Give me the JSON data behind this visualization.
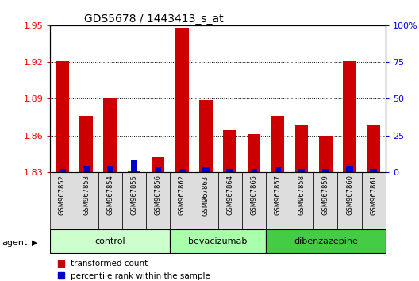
{
  "title": "GDS5678 / 1443413_s_at",
  "samples": [
    "GSM967852",
    "GSM967853",
    "GSM967854",
    "GSM967855",
    "GSM967856",
    "GSM967862",
    "GSM967863",
    "GSM967864",
    "GSM967865",
    "GSM967857",
    "GSM967858",
    "GSM967859",
    "GSM967860",
    "GSM967861"
  ],
  "red_values": [
    1.921,
    1.876,
    1.89,
    1.831,
    1.842,
    1.948,
    1.889,
    1.864,
    1.861,
    1.876,
    1.868,
    1.86,
    1.921,
    1.869
  ],
  "blue_values": [
    2,
    4,
    4,
    8,
    3,
    2,
    3,
    2,
    2,
    3,
    2,
    2,
    4,
    2
  ],
  "y_min": 1.83,
  "y_max": 1.95,
  "y_ticks": [
    1.83,
    1.86,
    1.89,
    1.92,
    1.95
  ],
  "right_ticks": [
    0,
    25,
    50,
    75,
    100
  ],
  "right_tick_labels": [
    "0",
    "25",
    "50",
    "75",
    "100%"
  ],
  "groups": [
    {
      "label": "control",
      "start": 0,
      "end": 5,
      "color": "#ccffcc"
    },
    {
      "label": "bevacizumab",
      "start": 5,
      "end": 9,
      "color": "#aaffaa"
    },
    {
      "label": "dibenzazepine",
      "start": 9,
      "end": 14,
      "color": "#44cc44"
    }
  ],
  "agent_label": "agent",
  "bar_color_red": "#cc0000",
  "bar_color_blue": "#0000cc",
  "legend_red": "transformed count",
  "legend_blue": "percentile rank within the sample",
  "bg_color": "#ffffff",
  "plot_bg": "#ffffff",
  "cell_bg": "#dddddd",
  "cell_border": "#000000"
}
